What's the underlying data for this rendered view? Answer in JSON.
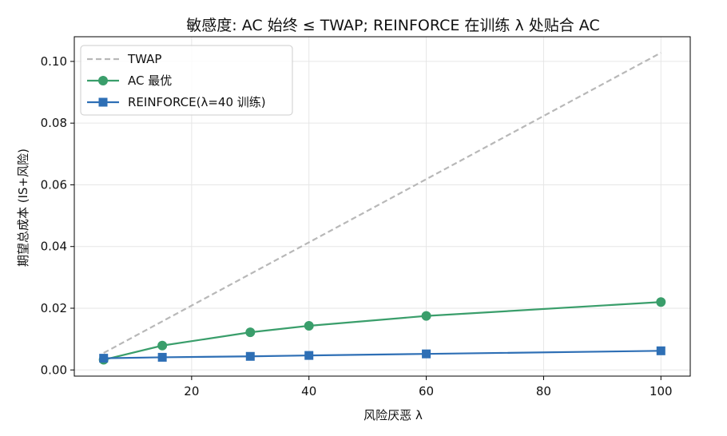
{
  "chart_data": {
    "type": "line",
    "title": "敏感度: AC 始终 ≤ TWAP; REINFORCE 在训练 λ 处贴合 AC",
    "xlabel": "风险厌恶 λ",
    "ylabel": "期望总成本 (IS+风险)",
    "xlim": [
      0,
      105
    ],
    "ylim": [
      -0.002,
      0.108
    ],
    "xticks": [
      20,
      40,
      60,
      80,
      100
    ],
    "yticks": [
      0.0,
      0.02,
      0.04,
      0.06,
      0.08,
      0.1
    ],
    "xtick_labels": [
      "20",
      "40",
      "60",
      "80",
      "100"
    ],
    "ytick_labels": [
      "0.00",
      "0.02",
      "0.04",
      "0.06",
      "0.08",
      "0.10"
    ],
    "grid": true,
    "legend_position": "top-left",
    "series": [
      {
        "name": "TWAP",
        "x": [
          5,
          100
        ],
        "values": [
          0.0055,
          0.1028
        ],
        "color": "#b8b8b8",
        "style": "dashed",
        "marker": "none"
      },
      {
        "name": "AC 最优",
        "x": [
          5,
          15,
          30,
          40,
          60,
          100
        ],
        "values": [
          0.0033,
          0.0079,
          0.0122,
          0.0143,
          0.0175,
          0.022
        ],
        "color": "#3a9e6b",
        "style": "solid",
        "marker": "circle"
      },
      {
        "name": "REINFORCE(λ=40 训练)",
        "x": [
          5,
          15,
          30,
          40,
          60,
          100
        ],
        "values": [
          0.0038,
          0.0041,
          0.0044,
          0.0047,
          0.0052,
          0.0062
        ],
        "color": "#2e6fb5",
        "style": "solid",
        "marker": "square"
      }
    ]
  }
}
